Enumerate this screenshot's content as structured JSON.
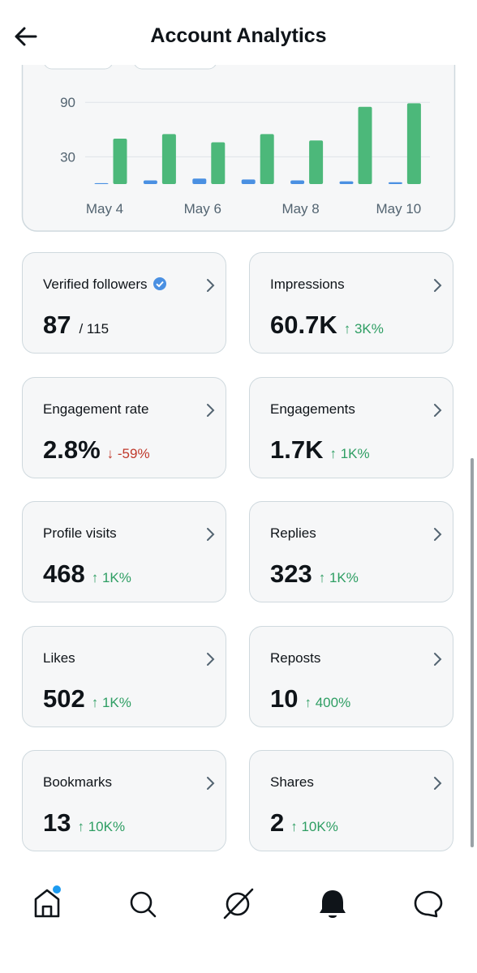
{
  "header": {
    "title": "Account Analytics"
  },
  "chart_data": {
    "type": "bar",
    "categories": [
      "May 4",
      null,
      "May 6",
      null,
      "May 8",
      null,
      "May 10"
    ],
    "series": [
      {
        "color": "#4a90e2",
        "values": [
          1,
          4,
          6,
          5,
          4,
          3,
          2
        ]
      },
      {
        "color": "#4cb87a",
        "values": [
          50,
          55,
          46,
          55,
          48,
          85,
          89
        ]
      }
    ],
    "ylim": [
      0,
      100
    ],
    "yticks": [
      30,
      90
    ],
    "grid": true
  },
  "cards": [
    {
      "title": "Verified followers",
      "value": "87",
      "total": "/ 115"
    },
    {
      "title": "Impressions",
      "value": "60.7K",
      "change": "↑ 3K%",
      "color": "#2e9e63"
    },
    {
      "title": "Engagement rate",
      "value": "2.8%",
      "change": "↓ -59%",
      "color": "#c0392b"
    },
    {
      "title": "Engagements",
      "value": "1.7K",
      "change": "↑ 1K%",
      "color": "#2e9e63"
    },
    {
      "title": "Profile visits",
      "value": "468",
      "change": "↑ 1K%",
      "color": "#2e9e63"
    },
    {
      "title": "Replies",
      "value": "323",
      "change": "↑ 1K%",
      "color": "#2e9e63"
    },
    {
      "title": "Likes",
      "value": "502",
      "change": "↑ 1K%",
      "color": "#2e9e63"
    },
    {
      "title": "Reposts",
      "value": "10",
      "change": "↑ 400%",
      "color": "#2e9e63"
    },
    {
      "title": "Bookmarks",
      "value": "13",
      "change": "↑ 10K%",
      "color": "#2e9e63"
    },
    {
      "title": "Shares",
      "value": "2",
      "change": "↑ 10K%",
      "color": "#2e9e63"
    }
  ]
}
